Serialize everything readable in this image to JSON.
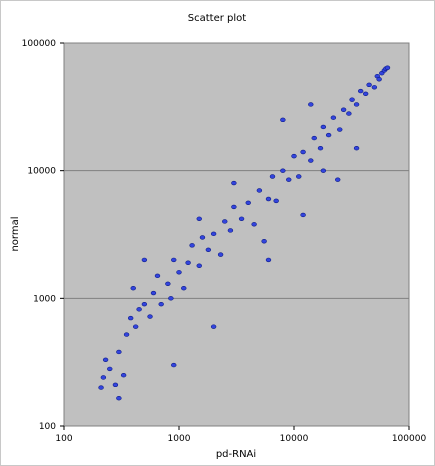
{
  "chart_data": {
    "type": "scatter",
    "title": "Scatter plot",
    "xlabel": "pd-RNAi",
    "ylabel": "normal",
    "x_scale": "log",
    "y_scale": "log",
    "xlim": [
      100,
      100000
    ],
    "ylim": [
      100,
      100000
    ],
    "x_ticks": [
      "100",
      "1000",
      "10000",
      "100000"
    ],
    "y_ticks": [
      "100",
      "1000",
      "10000",
      "100000"
    ],
    "grid": true,
    "legend": "none",
    "colors": {
      "plot_background": "#c0c0c0",
      "point_fill": "#3344dd",
      "point_stroke": "#0a1a88",
      "gridline": "#808080"
    },
    "series": [
      {
        "points": [
          [
            210,
            200
          ],
          [
            220,
            240
          ],
          [
            230,
            330
          ],
          [
            250,
            280
          ],
          [
            280,
            210
          ],
          [
            300,
            165
          ],
          [
            330,
            250
          ],
          [
            300,
            380
          ],
          [
            350,
            520
          ],
          [
            380,
            700
          ],
          [
            420,
            600
          ],
          [
            450,
            820
          ],
          [
            500,
            900
          ],
          [
            560,
            720
          ],
          [
            600,
            1100
          ],
          [
            650,
            1500
          ],
          [
            700,
            900
          ],
          [
            800,
            1300
          ],
          [
            850,
            1000
          ],
          [
            900,
            2000
          ],
          [
            1000,
            1600
          ],
          [
            1100,
            1200
          ],
          [
            1200,
            1900
          ],
          [
            1300,
            2600
          ],
          [
            1500,
            1800
          ],
          [
            1600,
            3000
          ],
          [
            1800,
            2400
          ],
          [
            2000,
            3200
          ],
          [
            2300,
            2200
          ],
          [
            2500,
            4000
          ],
          [
            2800,
            3400
          ],
          [
            3000,
            5200
          ],
          [
            3500,
            4200
          ],
          [
            4000,
            5600
          ],
          [
            4500,
            3800
          ],
          [
            5000,
            7000
          ],
          [
            6000,
            6000
          ],
          [
            6500,
            9000
          ],
          [
            7000,
            5800
          ],
          [
            8000,
            10000
          ],
          [
            9000,
            8500
          ],
          [
            10000,
            13000
          ],
          [
            11000,
            9000
          ],
          [
            12000,
            14000
          ],
          [
            14000,
            12000
          ],
          [
            15000,
            18000
          ],
          [
            17000,
            15000
          ],
          [
            18000,
            22000
          ],
          [
            20000,
            19000
          ],
          [
            22000,
            26000
          ],
          [
            25000,
            21000
          ],
          [
            27000,
            30000
          ],
          [
            30000,
            28000
          ],
          [
            32000,
            36000
          ],
          [
            35000,
            33000
          ],
          [
            38000,
            42000
          ],
          [
            42000,
            40000
          ],
          [
            45000,
            47000
          ],
          [
            50000,
            45000
          ],
          [
            53000,
            55000
          ],
          [
            55000,
            52000
          ],
          [
            58000,
            58000
          ],
          [
            61000,
            61000
          ],
          [
            63000,
            63000
          ],
          [
            65000,
            64000
          ],
          [
            400,
            1200
          ],
          [
            1500,
            4200
          ],
          [
            3000,
            8000
          ],
          [
            8000,
            25000
          ],
          [
            6000,
            2000
          ],
          [
            12000,
            4500
          ],
          [
            14000,
            33000
          ],
          [
            24000,
            8500
          ],
          [
            35000,
            15000
          ],
          [
            2000,
            600
          ],
          [
            500,
            2000
          ],
          [
            18000,
            10000
          ],
          [
            900,
            300
          ],
          [
            5500,
            2800
          ]
        ]
      }
    ]
  }
}
